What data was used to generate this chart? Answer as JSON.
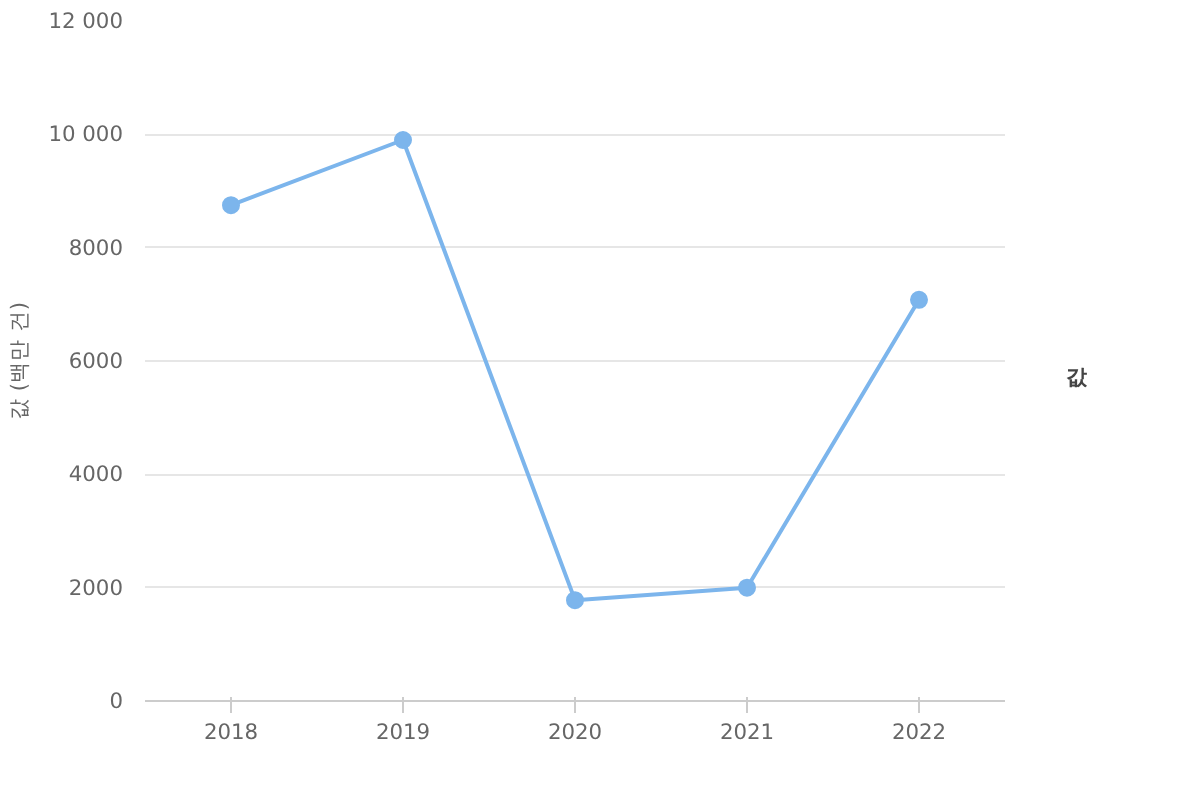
{
  "chart_data": {
    "type": "line",
    "ylabel": "값 (백만 건)",
    "categories": [
      "2018",
      "2019",
      "2020",
      "2021",
      "2022"
    ],
    "series": [
      {
        "name": "값",
        "color": "#7cb5ec",
        "values": [
          8750,
          9900,
          1780,
          2000,
          7080
        ]
      }
    ],
    "ylim": [
      0,
      12000
    ],
    "yticks": [
      0,
      2000,
      4000,
      6000,
      8000,
      {
        "value": 10000,
        "label": "10 000"
      },
      {
        "value": 12000,
        "label": "12 000"
      }
    ],
    "grid": "y",
    "legend": "right",
    "marker": "circle",
    "line_style": "solid"
  }
}
